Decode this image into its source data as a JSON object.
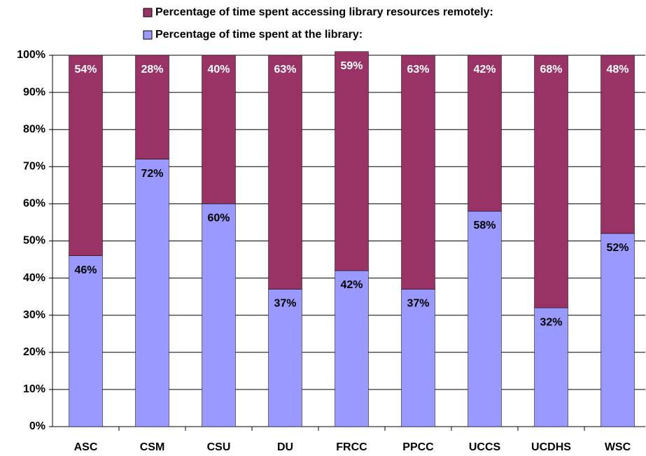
{
  "chart_data": {
    "type": "stacked_bar",
    "categories": [
      "ASC",
      "CSM",
      "CSU",
      "DU",
      "FRCC",
      "PPCC",
      "UCCS",
      "UCDHS",
      "WSC"
    ],
    "series": [
      {
        "name": "Percentage of time spent at the library:",
        "color": "#9999ff",
        "values": [
          46,
          72,
          60,
          37,
          42,
          37,
          58,
          32,
          52
        ],
        "value_labels": [
          "46%",
          "72%",
          "60%",
          "37%",
          "42%",
          "37%",
          "58%",
          "32%",
          "52%"
        ]
      },
      {
        "name": "Percentage of time spent accessing library resources remotely:",
        "color": "#993366",
        "values": [
          54,
          28,
          40,
          63,
          59,
          63,
          42,
          68,
          48
        ],
        "value_labels": [
          "54%",
          "28%",
          "40%",
          "63%",
          "59%",
          "63%",
          "42%",
          "68%",
          "48%"
        ]
      }
    ],
    "ylim": [
      0,
      100
    ],
    "yticks": [
      {
        "value": 0,
        "label": "0%"
      },
      {
        "value": 10,
        "label": "10%"
      },
      {
        "value": 20,
        "label": "20%"
      },
      {
        "value": 30,
        "label": "30%"
      },
      {
        "value": 40,
        "label": "40%"
      },
      {
        "value": 50,
        "label": "50%"
      },
      {
        "value": 60,
        "label": "60%"
      },
      {
        "value": 70,
        "label": "70%"
      },
      {
        "value": 80,
        "label": "80%"
      },
      {
        "value": 90,
        "label": "90%"
      },
      {
        "value": 100,
        "label": "100%"
      }
    ],
    "grid": true
  }
}
